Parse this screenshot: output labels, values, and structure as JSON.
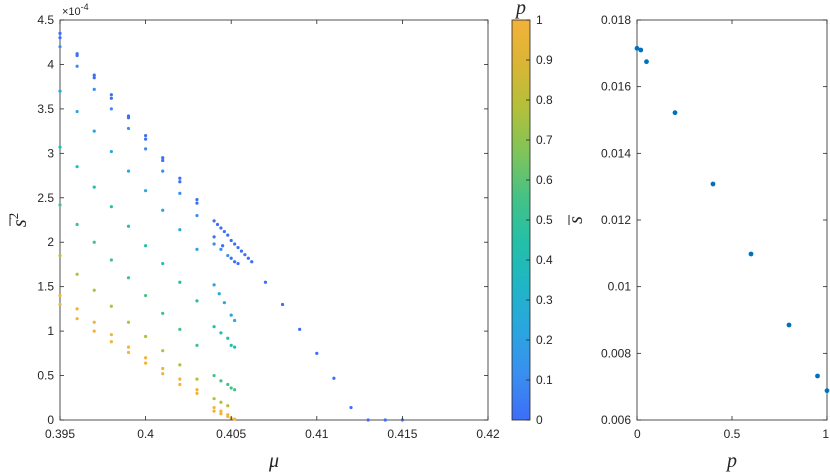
{
  "chart_data": [
    {
      "type": "scatter",
      "xlabel": "μ",
      "ylabel_base": "s",
      "ylabel_sup": "2",
      "exponent_label": "×10^{-4}",
      "exponent_base": "×10",
      "exponent_power": "-4",
      "xlim": [
        0.395,
        0.42
      ],
      "ylim": [
        0,
        4.5
      ],
      "xticks": [
        0.395,
        0.4,
        0.405,
        0.41,
        0.415,
        0.42
      ],
      "xtick_labels": [
        "0.395",
        "0.4",
        "0.405",
        "0.41",
        "0.415",
        "0.42"
      ],
      "yticks": [
        0,
        0.5,
        1,
        1.5,
        2,
        2.5,
        3,
        3.5,
        4,
        4.5
      ],
      "ytick_labels": [
        "0",
        "0.5",
        "1",
        "1.5",
        "2",
        "2.5",
        "3",
        "3.5",
        "4",
        "4.5"
      ],
      "series": [
        {
          "p": 0.0,
          "points": [
            [
              0.395,
              4.35
            ],
            [
              0.396,
              4.12
            ],
            [
              0.397,
              3.88
            ],
            [
              0.398,
              3.66
            ],
            [
              0.399,
              3.42
            ],
            [
              0.4,
              3.2
            ],
            [
              0.401,
              2.95
            ],
            [
              0.402,
              2.72
            ],
            [
              0.403,
              2.48
            ],
            [
              0.404,
              2.24
            ],
            [
              0.4042,
              2.2
            ],
            [
              0.4044,
              2.16
            ],
            [
              0.4046,
              2.12
            ],
            [
              0.4048,
              2.08
            ],
            [
              0.405,
              2.02
            ],
            [
              0.4052,
              1.98
            ],
            [
              0.4054,
              1.94
            ],
            [
              0.4056,
              1.9
            ],
            [
              0.4058,
              1.86
            ],
            [
              0.406,
              1.82
            ],
            [
              0.4062,
              1.78
            ],
            [
              0.407,
              1.55
            ],
            [
              0.408,
              1.3
            ],
            [
              0.409,
              1.02
            ],
            [
              0.41,
              0.75
            ],
            [
              0.411,
              0.47
            ],
            [
              0.412,
              0.14
            ],
            [
              0.413,
              0.0
            ],
            [
              0.414,
              0.0
            ],
            [
              0.415,
              0.0
            ]
          ]
        },
        {
          "p": 0.05,
          "points": [
            [
              0.395,
              4.3
            ],
            [
              0.396,
              4.1
            ],
            [
              0.397,
              3.85
            ],
            [
              0.398,
              3.62
            ],
            [
              0.399,
              3.4
            ],
            [
              0.4,
              3.16
            ],
            [
              0.401,
              2.92
            ],
            [
              0.402,
              2.68
            ],
            [
              0.403,
              2.44
            ],
            [
              0.404,
              2.06
            ],
            [
              0.4045,
              1.96
            ],
            [
              0.405,
              1.82
            ],
            [
              0.4052,
              1.78
            ],
            [
              0.4054,
              1.76
            ]
          ]
        },
        {
          "p": 0.1,
          "points": [
            [
              0.395,
              4.2
            ],
            [
              0.396,
              3.98
            ],
            [
              0.397,
              3.72
            ],
            [
              0.398,
              3.5
            ],
            [
              0.399,
              3.28
            ],
            [
              0.4,
              3.05
            ],
            [
              0.401,
              2.8
            ],
            [
              0.402,
              2.55
            ],
            [
              0.403,
              2.3
            ],
            [
              0.404,
              1.98
            ],
            [
              0.4044,
              1.92
            ],
            [
              0.4048,
              1.85
            ]
          ]
        },
        {
          "p": 0.2,
          "points": [
            [
              0.395,
              3.7
            ],
            [
              0.396,
              3.47
            ],
            [
              0.397,
              3.25
            ],
            [
              0.398,
              3.02
            ],
            [
              0.399,
              2.8
            ],
            [
              0.4,
              2.58
            ],
            [
              0.401,
              2.36
            ],
            [
              0.402,
              2.14
            ],
            [
              0.403,
              1.92
            ],
            [
              0.404,
              1.52
            ],
            [
              0.4043,
              1.42
            ],
            [
              0.4046,
              1.32
            ],
            [
              0.405,
              1.18
            ],
            [
              0.4052,
              1.12
            ]
          ]
        },
        {
          "p": 0.4,
          "points": [
            [
              0.395,
              3.07
            ],
            [
              0.396,
              2.85
            ],
            [
              0.397,
              2.62
            ],
            [
              0.398,
              2.4
            ],
            [
              0.399,
              2.18
            ],
            [
              0.4,
              1.96
            ],
            [
              0.401,
              1.76
            ],
            [
              0.402,
              1.55
            ],
            [
              0.403,
              1.34
            ],
            [
              0.404,
              1.05
            ],
            [
              0.4044,
              0.98
            ],
            [
              0.4048,
              0.92
            ],
            [
              0.405,
              0.84
            ],
            [
              0.4052,
              0.82
            ]
          ]
        },
        {
          "p": 0.6,
          "points": [
            [
              0.395,
              2.42
            ],
            [
              0.396,
              2.2
            ],
            [
              0.397,
              2.0
            ],
            [
              0.398,
              1.8
            ],
            [
              0.399,
              1.6
            ],
            [
              0.4,
              1.4
            ],
            [
              0.401,
              1.2
            ],
            [
              0.402,
              1.02
            ],
            [
              0.403,
              0.84
            ],
            [
              0.404,
              0.5
            ],
            [
              0.4044,
              0.44
            ],
            [
              0.4048,
              0.4
            ],
            [
              0.405,
              0.36
            ],
            [
              0.4052,
              0.34
            ]
          ]
        },
        {
          "p": 0.8,
          "points": [
            [
              0.395,
              1.85
            ],
            [
              0.396,
              1.64
            ],
            [
              0.397,
              1.46
            ],
            [
              0.398,
              1.28
            ],
            [
              0.399,
              1.1
            ],
            [
              0.4,
              0.94
            ],
            [
              0.401,
              0.78
            ],
            [
              0.402,
              0.62
            ],
            [
              0.403,
              0.46
            ],
            [
              0.404,
              0.24
            ],
            [
              0.4044,
              0.2
            ],
            [
              0.4048,
              0.16
            ]
          ]
        },
        {
          "p": 0.95,
          "points": [
            [
              0.395,
              1.4
            ],
            [
              0.396,
              1.25
            ],
            [
              0.397,
              1.1
            ],
            [
              0.398,
              0.96
            ],
            [
              0.399,
              0.82
            ],
            [
              0.4,
              0.7
            ],
            [
              0.401,
              0.58
            ],
            [
              0.402,
              0.46
            ],
            [
              0.403,
              0.34
            ],
            [
              0.404,
              0.14
            ],
            [
              0.4044,
              0.1
            ],
            [
              0.4048,
              0.06
            ],
            [
              0.405,
              0.02
            ]
          ]
        },
        {
          "p": 1.0,
          "points": [
            [
              0.395,
              1.3
            ],
            [
              0.396,
              1.14
            ],
            [
              0.397,
              1.0
            ],
            [
              0.398,
              0.88
            ],
            [
              0.399,
              0.76
            ],
            [
              0.4,
              0.64
            ],
            [
              0.401,
              0.52
            ],
            [
              0.402,
              0.4
            ],
            [
              0.403,
              0.3
            ],
            [
              0.404,
              0.1
            ],
            [
              0.4044,
              0.07
            ],
            [
              0.4048,
              0.04
            ],
            [
              0.4052,
              0.01
            ]
          ]
        }
      ]
    },
    {
      "type": "colorbar",
      "label": "p",
      "range": [
        0,
        1
      ],
      "ticks": [
        0,
        0.1,
        0.2,
        0.3,
        0.4,
        0.5,
        0.6,
        0.7,
        0.8,
        0.9,
        1
      ],
      "tick_labels": [
        "0",
        "0.1",
        "0.2",
        "0.3",
        "0.4",
        "0.5",
        "0.6",
        "0.7",
        "0.8",
        "0.9",
        "1"
      ],
      "colormap": [
        "#3d6ef7",
        "#3a8ef0",
        "#2aa5e0",
        "#20b5c7",
        "#24bfa8",
        "#44c286",
        "#7ec45a",
        "#b2c03a",
        "#dab535",
        "#f3b23a"
      ]
    },
    {
      "type": "scatter",
      "xlabel": "p",
      "ylabel": "s",
      "xlim": [
        0,
        1
      ],
      "ylim": [
        0.006,
        0.018
      ],
      "xticks": [
        0,
        0.5,
        1
      ],
      "xtick_labels": [
        "0",
        "0.5",
        "1"
      ],
      "yticks": [
        0.006,
        0.008,
        0.01,
        0.012,
        0.014,
        0.016,
        0.018
      ],
      "ytick_labels": [
        "0.006",
        "0.008",
        "0.01",
        "0.012",
        "0.014",
        "0.016",
        "0.018"
      ],
      "color": "#0072bd",
      "x": [
        0.0,
        0.02,
        0.05,
        0.2,
        0.4,
        0.6,
        0.8,
        0.95,
        1.0
      ],
      "y": [
        0.01715,
        0.0171,
        0.01675,
        0.01522,
        0.01308,
        0.01098,
        0.00885,
        0.00732,
        0.00688
      ]
    }
  ]
}
